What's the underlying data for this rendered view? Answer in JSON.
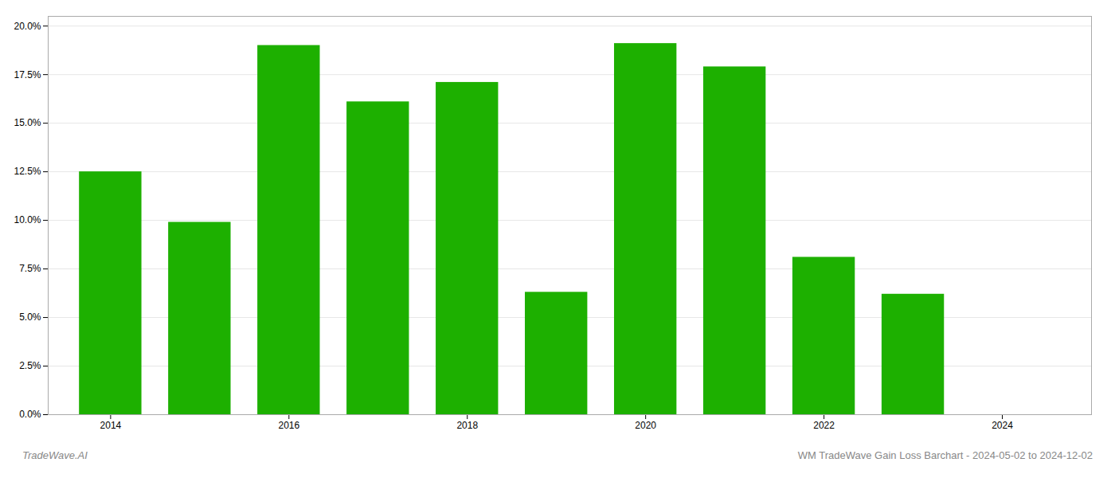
{
  "chart_data": {
    "type": "bar",
    "x": [
      2014,
      2015,
      2016,
      2017,
      2018,
      2019,
      2020,
      2021,
      2022,
      2023
    ],
    "values": [
      0.125,
      0.099,
      0.19,
      0.161,
      0.171,
      0.063,
      0.191,
      0.179,
      0.081,
      0.062
    ],
    "color": "#1db000",
    "xlim": [
      2013.3,
      2025.0
    ],
    "xticks": [
      2014,
      2016,
      2018,
      2020,
      2022,
      2024
    ],
    "ylim": [
      0,
      0.205
    ],
    "yticks": [
      {
        "value": 0.0,
        "label": "0.0%"
      },
      {
        "value": 0.025,
        "label": "2.5%"
      },
      {
        "value": 0.05,
        "label": "5.0%"
      },
      {
        "value": 0.075,
        "label": "7.5%"
      },
      {
        "value": 0.1,
        "label": "10.0%"
      },
      {
        "value": 0.125,
        "label": "12.5%"
      },
      {
        "value": 0.15,
        "label": "15.0%"
      },
      {
        "value": 0.175,
        "label": "17.5%"
      },
      {
        "value": 0.2,
        "label": "20.0%"
      }
    ],
    "grid": true,
    "annotations": [
      "TradeWave.AI",
      "WM TradeWave Gain Loss Barchart - 2024-05-02 to 2024-12-02"
    ]
  }
}
